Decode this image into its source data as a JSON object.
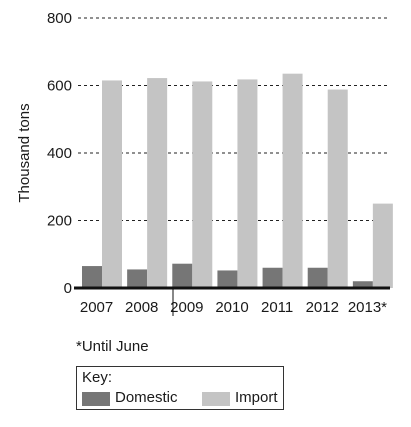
{
  "chart_data": {
    "type": "bar",
    "title": "",
    "xlabel": "",
    "ylabel": "Thousand tons",
    "ylim": [
      0,
      800
    ],
    "yticks": [
      0,
      200,
      400,
      600,
      800
    ],
    "grid": "horizontal dashed",
    "categories": [
      "2007",
      "2008",
      "2009",
      "2010",
      "2011",
      "2012",
      "2013*"
    ],
    "series": [
      {
        "name": "Domestic",
        "color": "#767676",
        "values": [
          65,
          55,
          72,
          52,
          60,
          60,
          20
        ]
      },
      {
        "name": "Import",
        "color": "#c4c4c4",
        "values": [
          615,
          622,
          612,
          618,
          635,
          588,
          250
        ]
      }
    ],
    "footnote": "*Until June",
    "legend": {
      "title": "Key:",
      "placement": "bottom-left"
    }
  }
}
